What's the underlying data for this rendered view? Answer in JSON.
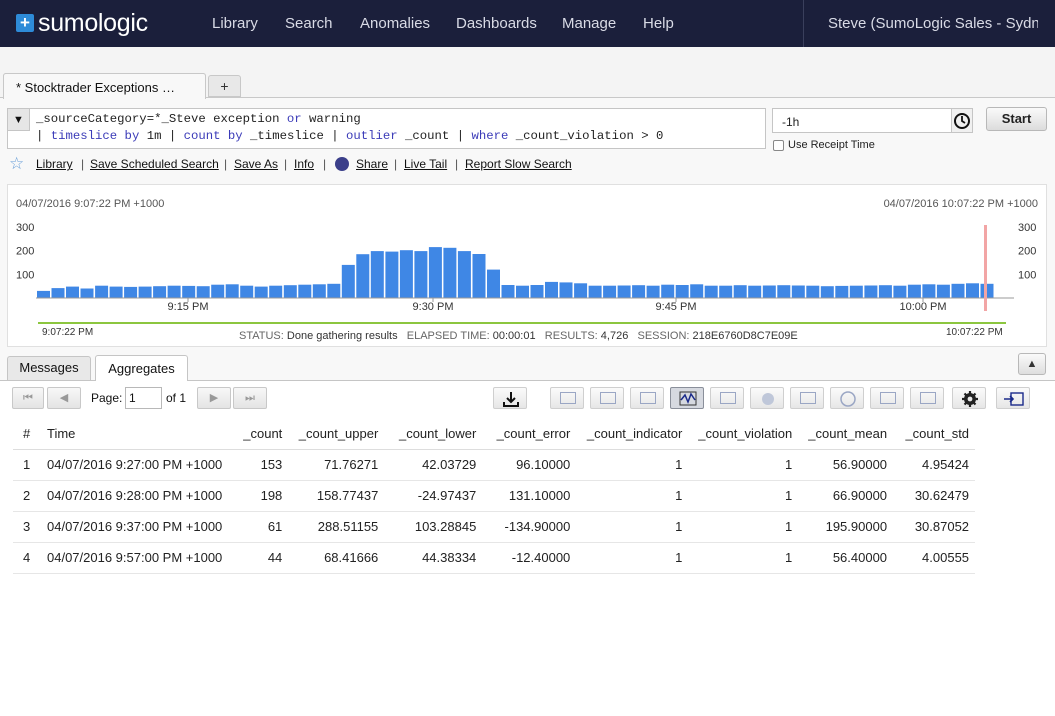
{
  "brand": {
    "name": "sumologic",
    "mark": "+"
  },
  "nav": {
    "items": [
      "Library",
      "Search",
      "Anomalies",
      "Dashboards",
      "Manage",
      "Help"
    ],
    "user": "Steve (SumoLogic Sales - Sydne…"
  },
  "tabs": {
    "active_label": "* Stocktrader Exceptions …",
    "add_label": "+"
  },
  "query": {
    "line1_a": "_sourceCategory=*_Steve exception ",
    "line1_kw": "or",
    "line1_b": " warning",
    "line2": [
      {
        "t": "| ",
        "kw": false
      },
      {
        "t": "timeslice by",
        "kw": true
      },
      {
        "t": " 1m ",
        "kw": false
      },
      {
        "t": "| ",
        "kw": false
      },
      {
        "t": "count by",
        "kw": true
      },
      {
        "t": " _timeslice ",
        "kw": false
      },
      {
        "t": "| ",
        "kw": false
      },
      {
        "t": "outlier",
        "kw": true
      },
      {
        "t": " _count ",
        "kw": false
      },
      {
        "t": "| ",
        "kw": false
      },
      {
        "t": "where",
        "kw": true
      },
      {
        "t": " _count_violation > 0",
        "kw": false
      }
    ],
    "toggle_icon": "triangle-down-icon"
  },
  "time": {
    "range": "-1h",
    "clock_icon": "clock-icon",
    "start_label": "Start",
    "receipt_label": "Use Receipt Time",
    "receipt_checked": false
  },
  "links": {
    "library": "Library",
    "save_scheduled": "Save Scheduled Search",
    "save_as": "Save As",
    "info": "Info",
    "share": "Share",
    "live_tail": "Live Tail",
    "report_slow": "Report Slow Search",
    "sep": "|"
  },
  "histogram": {
    "start_ts": "04/07/2016 9:07:22 PM +1000",
    "end_ts": "04/07/2016 10:07:22 PM +1000",
    "start_time": "9:07:22 PM",
    "end_time": "10:07:22 PM",
    "y_ticks": [
      "300",
      "200",
      "100"
    ],
    "x_ticks": [
      "9:15 PM",
      "9:30 PM",
      "9:45 PM",
      "10:00 PM"
    ],
    "bar_color": "#3f87e5",
    "cursor_color": "#f2a5a5",
    "status_key": "STATUS:",
    "status_val": "Done gathering results",
    "elapsed_key": "ELAPSED TIME:",
    "elapsed_val": "00:00:01",
    "results_key": "RESULTS:",
    "results_val": "4,726",
    "session_key": "SESSION:",
    "session_val": "218E6760D8C7E09E"
  },
  "chart_data": {
    "type": "bar",
    "ylim": [
      0,
      300
    ],
    "x_ticks": [
      "9:15 PM",
      "9:30 PM",
      "9:45 PM",
      "10:00 PM"
    ],
    "values": [
      30,
      42,
      48,
      40,
      52,
      48,
      47,
      48,
      50,
      52,
      51,
      50,
      56,
      58,
      52,
      48,
      52,
      54,
      56,
      58,
      60,
      140,
      185,
      198,
      196,
      202,
      198,
      215,
      212,
      198,
      186,
      120,
      55,
      52,
      55,
      68,
      66,
      62,
      52,
      52,
      53,
      54,
      52,
      56,
      55,
      58,
      52,
      52,
      54,
      52,
      53,
      54,
      53,
      52,
      50,
      51,
      52,
      53,
      54,
      52,
      56,
      58,
      56,
      60,
      62,
      60
    ]
  },
  "results": {
    "tabs": [
      "Messages",
      "Aggregates"
    ],
    "active_tab": "Aggregates",
    "collapse_icon": "triangle-up-icon",
    "pager": {
      "page_label": "Page:",
      "page_value": "1",
      "of_label": "of 1"
    },
    "columns": [
      "#",
      "Time",
      "_count",
      "_count_upper",
      "_count_lower",
      "_count_error",
      "_count_indicator",
      "_count_violation",
      "_count_mean",
      "_count_std"
    ],
    "rows": [
      [
        "1",
        "04/07/2016 9:27:00 PM +1000",
        "153",
        "71.76271",
        "42.03729",
        "96.10000",
        "1",
        "1",
        "56.90000",
        "4.95424"
      ],
      [
        "2",
        "04/07/2016 9:28:00 PM +1000",
        "198",
        "158.77437",
        "-24.97437",
        "131.10000",
        "1",
        "1",
        "66.90000",
        "30.62479"
      ],
      [
        "3",
        "04/07/2016 9:37:00 PM +1000",
        "61",
        "288.51155",
        "103.28845",
        "-134.90000",
        "1",
        "1",
        "195.90000",
        "30.87052"
      ],
      [
        "4",
        "04/07/2016 9:57:00 PM +1000",
        "44",
        "68.41666",
        "44.38334",
        "-12.40000",
        "1",
        "1",
        "56.40000",
        "4.00555"
      ]
    ]
  }
}
